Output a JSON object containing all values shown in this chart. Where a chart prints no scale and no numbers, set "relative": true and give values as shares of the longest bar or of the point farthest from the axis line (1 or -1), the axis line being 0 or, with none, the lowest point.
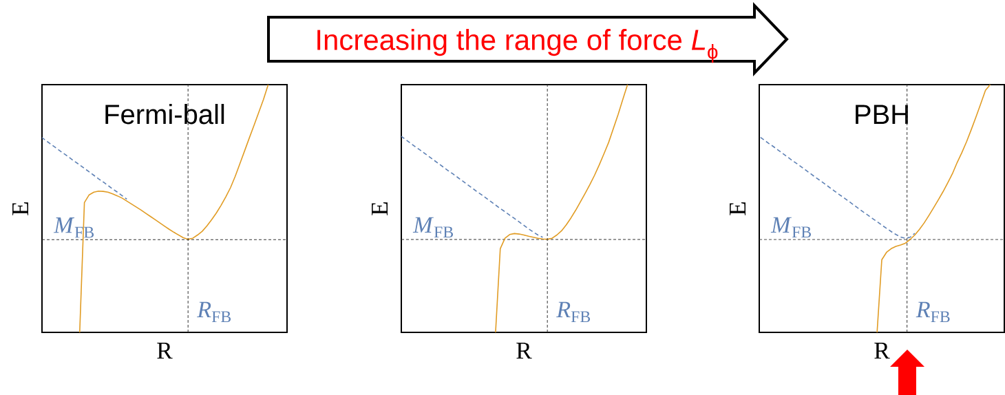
{
  "chart_data": [
    {
      "type": "line",
      "xlabel": "R",
      "ylabel": "E",
      "relative": true,
      "annotations": [
        "Fermi-ball",
        {
          "text": "*R*$_{FB}$"
        }
      ],
      "categories": [
        null,
        null,
        null,
        null,
        null,
        null,
        null,
        null,
        null,
        null,
        null,
        null,
        null,
        null,
        null,
        null,
        null,
        null,
        null,
        null,
        null,
        null,
        null,
        null,
        null,
        null,
        null,
        null,
        null,
        null,
        null,
        null,
        null,
        null,
        null,
        null,
        null,
        null,
        null,
        null,
        null,
        null,
        null,
        null,
        null,
        null,
        null,
        null,
        null,
        null,
        null,
        null,
        null
      ],
      "series": [
        {
          "color": "#5e81b5",
          "line_style": "dashed",
          "values": [
            0.786,
            0.772,
            0.758,
            0.744,
            0.73,
            0.717,
            0.703,
            0.689,
            0.676,
            0.662,
            0.648,
            0.634,
            0.62,
            0.607,
            0.593,
            0.579,
            0.566,
            0.552,
            0.538,
            null,
            null,
            null,
            null,
            null,
            null,
            null,
            null,
            null,
            null,
            null,
            null,
            null,
            null,
            null,
            null,
            null,
            null,
            null,
            null,
            null,
            null,
            null,
            null,
            null,
            null,
            null,
            null,
            null,
            null,
            null,
            null,
            null,
            null
          ]
        },
        {
          "color": "#e19c24",
          "line_style": "solid",
          "values": [
            null,
            null,
            null,
            null,
            null,
            null,
            null,
            null,
            0,
            0.524,
            0.555,
            0.566,
            0.57,
            0.569,
            0.566,
            0.559,
            0.551,
            0.542,
            0.53,
            0.518,
            0.506,
            0.494,
            0.481,
            0.468,
            0.455,
            0.442,
            0.429,
            0.416,
            0.404,
            0.393,
            0.382,
            0.376,
            0.38,
            0.393,
            0.408,
            0.43,
            0.455,
            0.482,
            0.513,
            0.547,
            0.584,
            0.63,
            0.681,
            0.733,
            0.785,
            0.836,
            0.888,
            0.94,
            1,
            null,
            null,
            null,
            null
          ]
        }
      ],
      "ref_lines": [
        {
          "axis": "y",
          "value": 0.374,
          "label": "*M*$_{FB}$",
          "color": "#333333",
          "line_style": "dashed"
        }
      ]
    },
    {
      "type": "line",
      "title": "Increasing the range of force *L*$_{ϕ}$",
      "xlabel": "R",
      "ylabel": "E",
      "relative": true,
      "annotations": [
        {
          "text": "*R*$_{FB}$"
        }
      ],
      "categories": [
        null,
        null,
        null,
        null,
        null,
        null,
        null,
        null,
        null,
        null,
        null,
        null,
        null,
        null,
        null,
        null,
        null,
        null,
        null,
        null,
        null,
        null,
        null,
        null,
        null,
        null,
        null,
        null,
        null,
        null,
        null,
        null,
        null,
        null,
        null,
        null,
        null,
        null,
        null,
        null,
        null,
        null,
        null,
        null,
        null,
        null,
        null,
        null,
        null,
        null,
        null,
        null,
        null
      ],
      "series": [
        {
          "color": "#5e81b5",
          "line_style": "dashed",
          "values": [
            0.791,
            0.777,
            0.763,
            0.749,
            0.736,
            0.722,
            0.708,
            0.694,
            0.68,
            0.666,
            0.652,
            0.639,
            0.625,
            0.611,
            0.597,
            0.583,
            0.569,
            0.556,
            0.542,
            0.528,
            0.514,
            0.5,
            0.487,
            0.473,
            0.46,
            0.446,
            0.432,
            0.418,
            0.405,
            0.393,
            0.384,
            null,
            null,
            null,
            null,
            null,
            null,
            null,
            null,
            null,
            null,
            null,
            null,
            null,
            null,
            null,
            null,
            null,
            null,
            null,
            null,
            null,
            null
          ]
        },
        {
          "color": "#e19c24",
          "line_style": "solid",
          "values": [
            null,
            null,
            null,
            null,
            null,
            null,
            null,
            null,
            null,
            null,
            null,
            null,
            null,
            null,
            null,
            null,
            null,
            null,
            null,
            null,
            0,
            0.338,
            0.38,
            0.395,
            0.399,
            0.397,
            0.393,
            0.388,
            0.384,
            0.38,
            0.377,
            0.376,
            0.38,
            0.393,
            0.41,
            0.434,
            0.462,
            0.493,
            0.527,
            0.561,
            0.596,
            0.634,
            0.676,
            0.721,
            0.767,
            0.823,
            0.879,
            0.94,
            1,
            null,
            null,
            null,
            null
          ]
        }
      ],
      "ref_lines": [
        {
          "axis": "y",
          "value": 0.375,
          "label": "*M*$_{FB}$",
          "color": "#333333",
          "line_style": "dashed"
        }
      ]
    },
    {
      "type": "line",
      "xlabel": "R",
      "ylabel": "E",
      "relative": true,
      "annotations": [
        "PBH",
        {
          "text": "*R*$_{FB}$"
        }
      ],
      "categories": [
        null,
        null,
        null,
        null,
        null,
        null,
        null,
        null,
        null,
        null,
        null,
        null,
        null,
        null,
        null,
        null,
        null,
        null,
        null,
        null,
        null,
        null,
        null,
        null,
        null,
        null,
        null,
        null,
        null,
        null,
        null,
        null,
        null,
        null,
        null,
        null,
        null,
        null,
        null,
        null,
        null,
        null,
        null,
        null,
        null,
        null,
        null,
        null,
        null,
        null,
        null,
        null,
        null
      ],
      "series": [
        {
          "color": "#5e81b5",
          "line_style": "dashed",
          "values": [
            0.791,
            0.777,
            0.763,
            0.75,
            0.736,
            0.722,
            0.708,
            0.694,
            0.681,
            0.667,
            0.653,
            0.639,
            0.625,
            0.612,
            0.598,
            0.584,
            0.57,
            0.556,
            0.543,
            0.529,
            0.515,
            0.501,
            0.487,
            0.474,
            0.46,
            0.447,
            0.433,
            0.42,
            0.407,
            0.395,
            0.385,
            0.38,
            0.384,
            0.4,
            null,
            null,
            null,
            null,
            null,
            null,
            null,
            null,
            null,
            null,
            null,
            null,
            null,
            null,
            null,
            null,
            null,
            null,
            null
          ]
        },
        {
          "color": "#e19c24",
          "line_style": "solid",
          "values": [
            null,
            null,
            null,
            null,
            null,
            null,
            null,
            null,
            null,
            null,
            null,
            null,
            null,
            null,
            null,
            null,
            null,
            null,
            null,
            null,
            null,
            null,
            null,
            null,
            null,
            0,
            0.293,
            0.323,
            0.338,
            0.347,
            0.353,
            0.36,
            0.375,
            0.393,
            0.416,
            0.442,
            0.472,
            0.503,
            0.535,
            0.568,
            0.604,
            0.641,
            0.686,
            0.726,
            0.77,
            0.819,
            0.87,
            0.923,
            0.977,
            1,
            null,
            null,
            null
          ]
        }
      ],
      "ref_lines": [
        {
          "axis": "y",
          "value": 0.375,
          "label": "*M*$_{FB}$",
          "color": "#333333",
          "line_style": "dashed"
        }
      ]
    }
  ]
}
